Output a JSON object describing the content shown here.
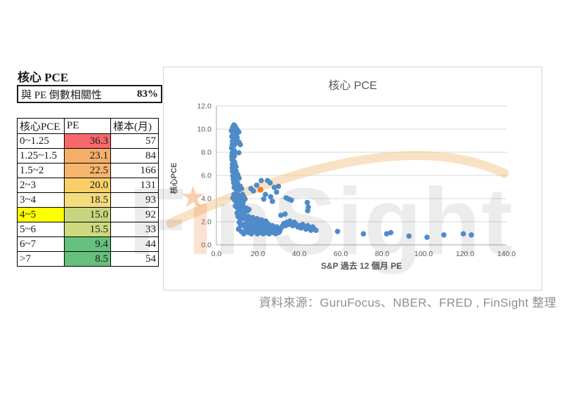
{
  "summary": {
    "title": "核心 PCE",
    "correlation_label": "與 PE 倒數相關性",
    "correlation_value": "83%"
  },
  "table": {
    "headers": [
      "核心PCE",
      "PE",
      "樣本(月)"
    ],
    "rows": [
      {
        "range": "0~1.25",
        "pe": "36.3",
        "samples": "57",
        "pe_color": "#F8696B",
        "range_color": "#FFFFFF"
      },
      {
        "range": "1.25~1.5",
        "pe": "23.1",
        "samples": "84",
        "pe_color": "#F7AE6B",
        "range_color": "#FFFFFF"
      },
      {
        "range": "1.5~2",
        "pe": "22.5",
        "samples": "166",
        "pe_color": "#F8B56E",
        "range_color": "#FFFFFF"
      },
      {
        "range": "2~3",
        "pe": "20.0",
        "samples": "131",
        "pe_color": "#FACF68",
        "range_color": "#FFFFFF"
      },
      {
        "range": "3~4",
        "pe": "18.5",
        "samples": "93",
        "pe_color": "#F4DC7D",
        "range_color": "#FFFFFF"
      },
      {
        "range": "4~5",
        "pe": "15.0",
        "samples": "92",
        "pe_color": "#C6D67E",
        "range_color": "#FFFF00"
      },
      {
        "range": "5~6",
        "pe": "15.5",
        "samples": "33",
        "pe_color": "#CCD980",
        "range_color": "#FFFFFF"
      },
      {
        "range": "6~7",
        "pe": "9.4",
        "samples": "44",
        "pe_color": "#66C07D",
        "range_color": "#FFFFFF"
      },
      {
        "range": ">7",
        "pe": "8.5",
        "samples": "54",
        "pe_color": "#66C07D",
        "range_color": "#FFFFFF"
      }
    ]
  },
  "chart_data": {
    "type": "scatter",
    "title": "核心 PCE",
    "xlabel": "S&P 過去 12 個月 PE",
    "ylabel": "核心PCE",
    "xlim": [
      0,
      140
    ],
    "ylim": [
      0,
      12
    ],
    "x_tick_labels": [
      "0.0",
      "20.0",
      "40.0",
      "60.0",
      "80.0",
      "100.0",
      "120.0",
      "140.0"
    ],
    "y_tick_labels": [
      "0.0",
      "2.0",
      "4.0",
      "6.0",
      "8.0",
      "10.0",
      "12.0"
    ],
    "grid": "horizontal",
    "legend": "none",
    "colors": {
      "point": "#4F8BC9",
      "highlight": "#ED7D31",
      "gridline": "#DADADA",
      "axis": "#ABABAB",
      "text": "#595959"
    },
    "series": [
      {
        "color": "#4F8BC9",
        "points": [
          [
            7.6,
            9.8
          ],
          [
            8.2,
            10.1
          ],
          [
            8.5,
            9.9
          ],
          [
            8.8,
            10.3
          ],
          [
            9.1,
            9.8
          ],
          [
            9.4,
            10.2
          ],
          [
            9.7,
            9.7
          ],
          [
            9.9,
            10.0
          ],
          [
            10.3,
            9.9
          ],
          [
            10.6,
            9.8
          ],
          [
            11.2,
            9.7
          ],
          [
            8.3,
            9.6
          ],
          [
            9.0,
            9.5
          ],
          [
            9.6,
            9.6
          ],
          [
            10.1,
            9.5
          ],
          [
            7.8,
            9.3
          ],
          [
            8.4,
            9.2
          ],
          [
            9.0,
            9.1
          ],
          [
            9.6,
            9.0
          ],
          [
            10.4,
            9.2
          ],
          [
            8.1,
            8.9
          ],
          [
            8.7,
            8.8
          ],
          [
            9.3,
            8.7
          ],
          [
            8.0,
            8.6
          ],
          [
            8.6,
            8.5
          ],
          [
            9.2,
            8.6
          ],
          [
            11.3,
            8.8
          ],
          [
            11.9,
            8.6
          ],
          [
            7.7,
            8.3
          ],
          [
            8.3,
            8.2
          ],
          [
            8.9,
            8.1
          ],
          [
            8.0,
            7.9
          ],
          [
            8.6,
            7.8
          ],
          [
            9.2,
            7.9
          ],
          [
            7.8,
            7.6
          ],
          [
            8.4,
            7.5
          ],
          [
            9.0,
            7.6
          ],
          [
            11.2,
            7.9
          ],
          [
            7.9,
            7.3
          ],
          [
            8.5,
            7.2
          ],
          [
            9.1,
            7.1
          ],
          [
            8.1,
            6.9
          ],
          [
            8.7,
            6.8
          ],
          [
            9.3,
            6.9
          ],
          [
            8.0,
            6.6
          ],
          [
            8.6,
            6.5
          ],
          [
            9.2,
            6.6
          ],
          [
            9.8,
            6.7
          ],
          [
            8.1,
            6.3
          ],
          [
            8.7,
            6.2
          ],
          [
            9.3,
            6.1
          ],
          [
            9.9,
            6.3
          ],
          [
            8.3,
            5.9
          ],
          [
            8.9,
            5.8
          ],
          [
            9.5,
            5.9
          ],
          [
            10.1,
            5.8
          ],
          [
            8.5,
            5.6
          ],
          [
            9.1,
            5.5
          ],
          [
            10.7,
            6.0
          ],
          [
            11.3,
            5.7
          ],
          [
            8.7,
            5.3
          ],
          [
            9.3,
            5.2
          ],
          [
            9.9,
            5.1
          ],
          [
            10.5,
            5.3
          ],
          [
            11.1,
            5.1
          ],
          [
            8.9,
            4.9
          ],
          [
            9.5,
            4.8
          ],
          [
            10.1,
            4.7
          ],
          [
            10.7,
            4.9
          ],
          [
            11.3,
            4.7
          ],
          [
            11.9,
            5.0
          ],
          [
            12.5,
            4.8
          ],
          [
            8.3,
            4.0
          ],
          [
            8.8,
            4.3
          ],
          [
            9.4,
            4.2
          ],
          [
            10.0,
            4.1
          ],
          [
            10.6,
            4.3
          ],
          [
            11.2,
            4.1
          ],
          [
            11.8,
            4.2
          ],
          [
            12.4,
            4.0
          ],
          [
            13.0,
            4.3
          ],
          [
            13.6,
            4.1
          ],
          [
            14.2,
            3.9
          ],
          [
            9.2,
            3.8
          ],
          [
            9.8,
            3.7
          ],
          [
            10.4,
            3.8
          ],
          [
            11.0,
            3.6
          ],
          [
            12.0,
            3.7
          ],
          [
            13.2,
            3.6
          ],
          [
            9.5,
            3.3
          ],
          [
            10.1,
            3.2
          ],
          [
            10.7,
            3.1
          ],
          [
            11.3,
            3.3
          ],
          [
            11.9,
            3.1
          ],
          [
            12.5,
            3.2
          ],
          [
            13.1,
            3.0
          ],
          [
            13.7,
            3.2
          ],
          [
            14.3,
            3.0
          ],
          [
            14.9,
            3.1
          ],
          [
            15.5,
            2.9
          ],
          [
            16.1,
            3.0
          ],
          [
            10.3,
            2.7
          ],
          [
            11.5,
            2.8
          ],
          [
            12.8,
            2.6
          ],
          [
            14.0,
            2.7
          ],
          [
            10.8,
            2.4
          ],
          [
            11.7,
            2.2
          ],
          [
            12.3,
            2.4
          ],
          [
            13.0,
            2.2
          ],
          [
            13.7,
            2.5
          ],
          [
            14.4,
            2.3
          ],
          [
            15.1,
            2.1
          ],
          [
            15.8,
            2.4
          ],
          [
            16.5,
            2.2
          ],
          [
            17.2,
            2.0
          ],
          [
            17.9,
            2.3
          ],
          [
            18.6,
            2.1
          ],
          [
            19.3,
            1.9
          ],
          [
            20.0,
            2.2
          ],
          [
            20.7,
            2.0
          ],
          [
            21.4,
            1.8
          ],
          [
            22.1,
            2.1
          ],
          [
            22.8,
            1.9
          ],
          [
            23.5,
            1.7
          ],
          [
            24.2,
            2.0
          ],
          [
            24.9,
            1.8
          ],
          [
            25.6,
            1.7
          ],
          [
            11.4,
            1.9
          ],
          [
            12.0,
            1.6
          ],
          [
            13.4,
            1.7
          ],
          [
            14.1,
            1.5
          ],
          [
            14.8,
            1.8
          ],
          [
            15.5,
            1.6
          ],
          [
            16.2,
            1.4
          ],
          [
            16.9,
            1.7
          ],
          [
            17.6,
            1.5
          ],
          [
            18.3,
            1.3
          ],
          [
            19.0,
            1.6
          ],
          [
            19.7,
            1.4
          ],
          [
            20.4,
            1.2
          ],
          [
            21.1,
            1.5
          ],
          [
            21.8,
            1.3
          ],
          [
            22.5,
            1.1
          ],
          [
            23.2,
            1.4
          ],
          [
            23.9,
            1.2
          ],
          [
            24.6,
            1.5
          ],
          [
            25.3,
            1.3
          ],
          [
            26.0,
            1.2
          ],
          [
            26.7,
            1.4
          ],
          [
            11.0,
            1.3
          ],
          [
            12.4,
            1.1
          ],
          [
            13.6,
            0.9
          ],
          [
            14.6,
            1.1
          ],
          [
            15.9,
            1.0
          ],
          [
            16.6,
            1.0
          ],
          [
            17.3,
            0.9
          ],
          [
            18.7,
            1.1
          ],
          [
            20.1,
            0.9
          ],
          [
            21.5,
            1.0
          ],
          [
            23.0,
            0.9
          ],
          [
            24.4,
            1.0
          ],
          [
            25.8,
            0.9
          ],
          [
            27.4,
            1.6
          ],
          [
            28.1,
            1.4
          ],
          [
            28.8,
            1.2
          ],
          [
            29.5,
            1.5
          ],
          [
            30.2,
            1.3
          ],
          [
            30.9,
            1.1
          ],
          [
            31.6,
            1.4
          ],
          [
            32.3,
            1.6
          ],
          [
            33.0,
            1.8
          ],
          [
            33.7,
            1.6
          ],
          [
            34.4,
            1.9
          ],
          [
            35.1,
            1.7
          ],
          [
            35.8,
            2.0
          ],
          [
            36.5,
            1.8
          ],
          [
            37.2,
            1.6
          ],
          [
            38.0,
            1.9
          ],
          [
            38.8,
            1.7
          ],
          [
            39.6,
            1.5
          ],
          [
            40.4,
            1.6
          ],
          [
            41.2,
            1.4
          ],
          [
            42.0,
            1.7
          ],
          [
            42.8,
            1.5
          ],
          [
            43.6,
            1.3
          ],
          [
            44.4,
            1.6
          ],
          [
            45.2,
            1.4
          ],
          [
            46.0,
            1.2
          ],
          [
            46.8,
            1.5
          ],
          [
            47.6,
            1.3
          ],
          [
            48.4,
            1.2
          ],
          [
            27.8,
            1.0
          ],
          [
            29.0,
            0.9
          ],
          [
            30.4,
            1.0
          ],
          [
            17.0,
            4.8
          ],
          [
            18.2,
            4.6
          ],
          [
            19.8,
            5.1
          ],
          [
            22.0,
            5.5
          ],
          [
            25.0,
            5.5
          ],
          [
            26.3,
            5.3
          ],
          [
            28.3,
            4.9
          ],
          [
            29.4,
            4.5
          ],
          [
            30.3,
            5.0
          ],
          [
            24.0,
            4.3
          ],
          [
            23.2,
            3.9
          ],
          [
            26.5,
            4.1
          ],
          [
            27.4,
            3.7
          ],
          [
            34.0,
            4.0
          ],
          [
            35.3,
            3.9
          ],
          [
            36.5,
            3.8
          ],
          [
            44.2,
            3.6
          ],
          [
            44.7,
            3.2
          ],
          [
            44.4,
            2.9
          ],
          [
            31.5,
            2.5
          ],
          [
            33.5,
            2.6
          ],
          [
            58.8,
            1.1
          ],
          [
            71.3,
            0.9
          ],
          [
            82.5,
            0.9
          ],
          [
            84.5,
            1.0
          ],
          [
            93.3,
            0.7
          ],
          [
            102.0,
            0.6
          ],
          [
            110.1,
            0.8
          ],
          [
            119.5,
            0.9
          ],
          [
            123.4,
            0.8
          ]
        ]
      },
      {
        "color": "#ED7D31",
        "points": [
          [
            21.6,
            4.7
          ]
        ]
      }
    ]
  },
  "watermark": {
    "text_f": "F",
    "text_i": "ı",
    "text_rest": "nSight",
    "star": "★"
  },
  "source": {
    "text": "資料來源：GuruFocus、NBER、FRED , FinSight 整理"
  }
}
